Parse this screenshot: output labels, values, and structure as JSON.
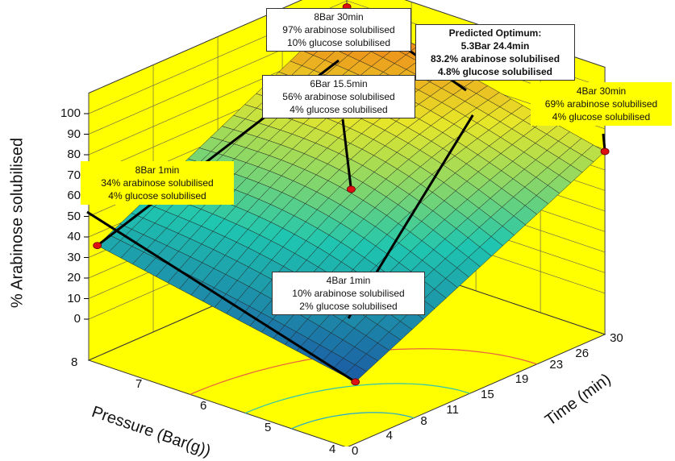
{
  "chart_data": {
    "type": "surface",
    "zlabel": "% Arabinose solubilised",
    "xlabel": "Pressure (Bar(g))",
    "ylabel": "Time (min)",
    "z_ticks": [
      "0",
      "10",
      "20",
      "30",
      "40",
      "50",
      "60",
      "70",
      "80",
      "90",
      "100"
    ],
    "pressure_ticks": [
      "8",
      "7",
      "6",
      "5",
      "4"
    ],
    "time_ticks": [
      "0",
      "4",
      "8",
      "11",
      "15",
      "19",
      "23",
      "26",
      "30"
    ],
    "zlim": [
      0,
      100
    ],
    "pressure_range": [
      4,
      8
    ],
    "time_range": [
      0,
      30
    ],
    "corners": [
      {
        "pressure": 8,
        "time": 1,
        "arabinose": 34
      },
      {
        "pressure": 8,
        "time": 30,
        "arabinose": 97
      },
      {
        "pressure": 4,
        "time": 30,
        "arabinose": 69
      },
      {
        "pressure": 4,
        "time": 1,
        "arabinose": 10
      }
    ],
    "points": [
      {
        "pressure": 8,
        "time": 1,
        "arabinose": 34,
        "glucose": 4
      },
      {
        "pressure": 8,
        "time": 30,
        "arabinose": 97,
        "glucose": 10
      },
      {
        "pressure": 6,
        "time": 15.5,
        "arabinose": 56,
        "glucose": 4
      },
      {
        "pressure": 4,
        "time": 30,
        "arabinose": 69,
        "glucose": 4
      },
      {
        "pressure": 4,
        "time": 1,
        "arabinose": 10,
        "glucose": 2
      },
      {
        "pressure": 5.3,
        "time": 24.4,
        "arabinose": 83.2,
        "glucose": 4.8
      }
    ],
    "annotations": [
      {
        "lines": [
          "8Bar 30min",
          "97% arabinose solubilised",
          "10% glucose solubilised"
        ],
        "bold": false
      },
      {
        "lines": [
          "Predicted Optimum:",
          "5.3Bar 24.4min",
          "83.2% arabinose solubilised",
          "4.8% glucose solubilised"
        ],
        "bold": true
      },
      {
        "lines": [
          "6Bar 15.5min",
          "56% arabinose solubilised",
          "4% glucose solubilised"
        ],
        "bold": false
      },
      {
        "lines": [
          "4Bar 30min",
          "69% arabinose solubilised",
          "4% glucose solubilised"
        ],
        "bold": false
      },
      {
        "lines": [
          "8Bar 1min",
          "34% arabinose solubilised",
          "4% glucose solubilised"
        ],
        "bold": false
      },
      {
        "lines": [
          "4Bar 1min",
          "10% arabinose solubilised",
          "2% glucose solubilised"
        ],
        "bold": false
      }
    ],
    "colors": {
      "wall": "#ffff00",
      "marker": "#dd1111",
      "surface_low": "#1a3aa0",
      "surface_mid": "#1fc6b0",
      "surface_high": "#f04a10"
    }
  }
}
